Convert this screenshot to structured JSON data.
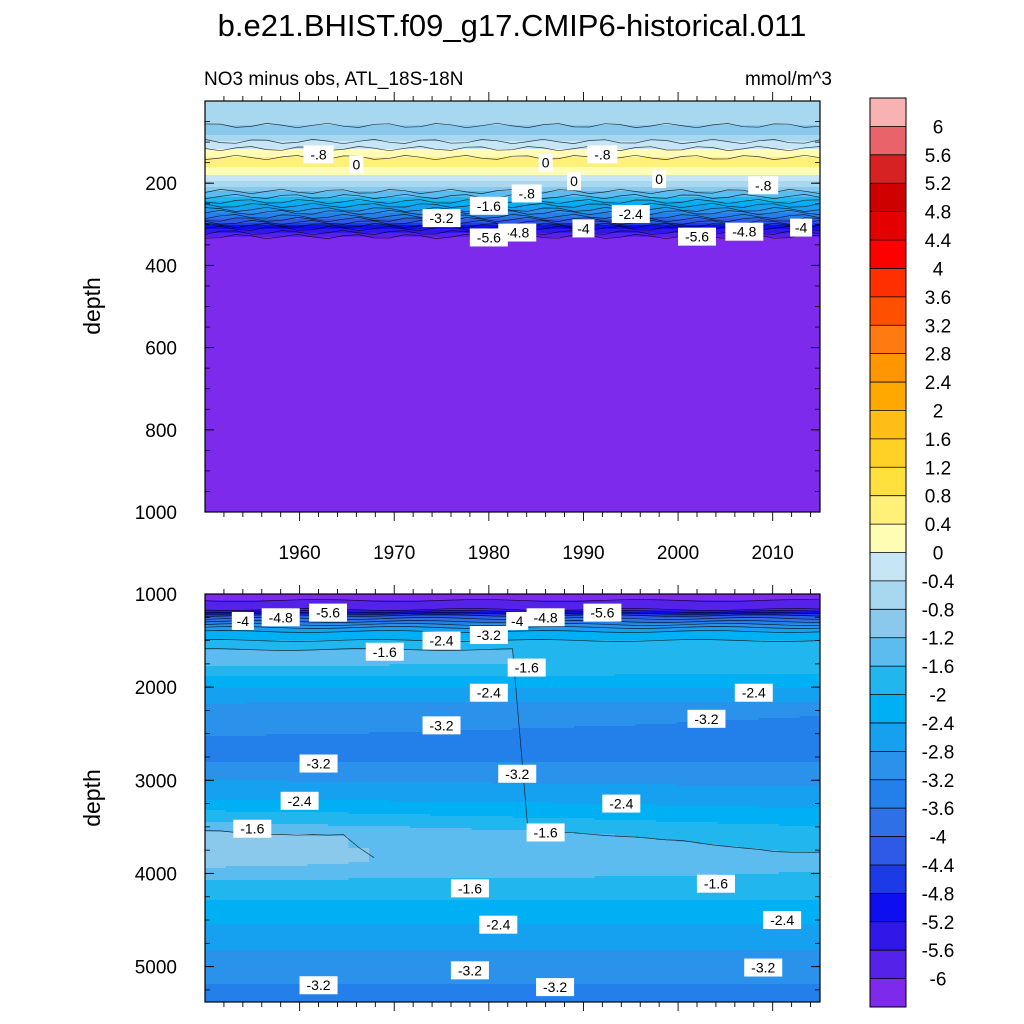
{
  "chart_data": {
    "type": "contour",
    "title": "b.e21.BHIST.f09_g17.CMIP6-historical.011",
    "subtitle_left": "NO3 minus obs, ATL_18S-18N",
    "subtitle_right": "mmol/m^3",
    "x_ticks": [
      "1960",
      "1970",
      "1980",
      "1990",
      "2000",
      "2010"
    ],
    "x_values": [
      1960,
      1970,
      1980,
      1990,
      2000,
      2010
    ],
    "xlim": [
      1950,
      2015
    ],
    "panels": [
      {
        "name": "upper",
        "ylabel": "depth",
        "ylim": [
          0,
          1000
        ],
        "yticks": [
          "200",
          "400",
          "600",
          "800",
          "1000"
        ],
        "ytick_values": [
          200,
          400,
          600,
          800,
          1000
        ],
        "profile": [
          {
            "depth": 0,
            "value": -0.5
          },
          {
            "depth": 40,
            "value": -0.7
          },
          {
            "depth": 80,
            "value": -0.9
          },
          {
            "depth": 115,
            "value": 0.0
          },
          {
            "depth": 150,
            "value": 0.6
          },
          {
            "depth": 180,
            "value": 0.0
          },
          {
            "depth": 215,
            "value": -1.0
          },
          {
            "depth": 250,
            "value": -2.2
          },
          {
            "depth": 285,
            "value": -3.8
          },
          {
            "depth": 315,
            "value": -5.4
          },
          {
            "depth": 335,
            "value": -6.2
          },
          {
            "depth": 1000,
            "value": -6.2
          }
        ],
        "contour_labels": [
          {
            "year": 1962,
            "depth": 130,
            "text": "-.8"
          },
          {
            "year": 1966,
            "depth": 155,
            "text": "0"
          },
          {
            "year": 1986,
            "depth": 150,
            "text": "0"
          },
          {
            "year": 1992,
            "depth": 130,
            "text": "-.8"
          },
          {
            "year": 1989,
            "depth": 195,
            "text": "0"
          },
          {
            "year": 1998,
            "depth": 190,
            "text": "0"
          },
          {
            "year": 1984,
            "depth": 225,
            "text": "-.8"
          },
          {
            "year": 2009,
            "depth": 205,
            "text": "-.8"
          },
          {
            "year": 1980,
            "depth": 255,
            "text": "-1.6"
          },
          {
            "year": 1995,
            "depth": 275,
            "text": "-2.4"
          },
          {
            "year": 1975,
            "depth": 285,
            "text": "-3.2"
          },
          {
            "year": 1990,
            "depth": 310,
            "text": "-4"
          },
          {
            "year": 2013,
            "depth": 308,
            "text": "-4"
          },
          {
            "year": 1983,
            "depth": 320,
            "text": "-4.8"
          },
          {
            "year": 2007,
            "depth": 318,
            "text": "-4.8"
          },
          {
            "year": 1980,
            "depth": 332,
            "text": "-5.6"
          },
          {
            "year": 2002,
            "depth": 330,
            "text": "-5.6"
          }
        ]
      },
      {
        "name": "lower",
        "ylabel": "depth",
        "ylim": [
          1000,
          5380
        ],
        "yticks": [
          "1000",
          "2000",
          "3000",
          "4000",
          "5000"
        ],
        "ytick_values": [
          1000,
          2000,
          3000,
          4000,
          5000
        ],
        "profile_start": [
          {
            "depth": 1000,
            "value": -6.2
          },
          {
            "depth": 1150,
            "value": -5.8
          },
          {
            "depth": 1260,
            "value": -4.0
          },
          {
            "depth": 1400,
            "value": -2.4
          },
          {
            "depth": 1600,
            "value": -1.6
          },
          {
            "depth": 1750,
            "value": -1.5
          },
          {
            "depth": 2000,
            "value": -2.4
          },
          {
            "depth": 2300,
            "value": -3.1
          },
          {
            "depth": 2750,
            "value": -3.3
          },
          {
            "depth": 3200,
            "value": -2.4
          },
          {
            "depth": 3450,
            "value": -1.6
          },
          {
            "depth": 3600,
            "value": -1.0
          },
          {
            "depth": 3900,
            "value": -1.1
          },
          {
            "depth": 4100,
            "value": -1.7
          },
          {
            "depth": 4400,
            "value": -2.2
          },
          {
            "depth": 4700,
            "value": -2.6
          },
          {
            "depth": 5000,
            "value": -3.1
          },
          {
            "depth": 5380,
            "value": -3.3
          }
        ],
        "profile_end": [
          {
            "depth": 1000,
            "value": -6.2
          },
          {
            "depth": 1150,
            "value": -5.8
          },
          {
            "depth": 1260,
            "value": -4.0
          },
          {
            "depth": 1400,
            "value": -2.4
          },
          {
            "depth": 1600,
            "value": -1.6
          },
          {
            "depth": 1750,
            "value": -1.7
          },
          {
            "depth": 2000,
            "value": -2.4
          },
          {
            "depth": 2300,
            "value": -3.2
          },
          {
            "depth": 2750,
            "value": -3.3
          },
          {
            "depth": 3200,
            "value": -2.6
          },
          {
            "depth": 3500,
            "value": -2.0
          },
          {
            "depth": 3850,
            "value": -1.5
          },
          {
            "depth": 4100,
            "value": -1.7
          },
          {
            "depth": 4400,
            "value": -2.2
          },
          {
            "depth": 4700,
            "value": -2.6
          },
          {
            "depth": 5000,
            "value": -3.1
          },
          {
            "depth": 5380,
            "value": -3.3
          }
        ],
        "contour_labels": [
          {
            "year": 1954,
            "depth": 1290,
            "text": "-4"
          },
          {
            "year": 1958,
            "depth": 1250,
            "text": "-4.8"
          },
          {
            "year": 1963,
            "depth": 1200,
            "text": "-5.6"
          },
          {
            "year": 1983,
            "depth": 1290,
            "text": "-4"
          },
          {
            "year": 1986,
            "depth": 1250,
            "text": "-4.8"
          },
          {
            "year": 1992,
            "depth": 1200,
            "text": "-5.6"
          },
          {
            "year": 1969,
            "depth": 1620,
            "text": "-1.6"
          },
          {
            "year": 1975,
            "depth": 1500,
            "text": "-2.4"
          },
          {
            "year": 1980,
            "depth": 1440,
            "text": "-3.2"
          },
          {
            "year": 1984,
            "depth": 1790,
            "text": "-1.6"
          },
          {
            "year": 1980,
            "depth": 2060,
            "text": "-2.4"
          },
          {
            "year": 2008,
            "depth": 2060,
            "text": "-2.4"
          },
          {
            "year": 1975,
            "depth": 2410,
            "text": "-3.2"
          },
          {
            "year": 2003,
            "depth": 2340,
            "text": "-3.2"
          },
          {
            "year": 1962,
            "depth": 2820,
            "text": "-3.2"
          },
          {
            "year": 1983,
            "depth": 2930,
            "text": "-3.2"
          },
          {
            "year": 1960,
            "depth": 3220,
            "text": "-2.4"
          },
          {
            "year": 1994,
            "depth": 3250,
            "text": "-2.4"
          },
          {
            "year": 1955,
            "depth": 3520,
            "text": "-1.6"
          },
          {
            "year": 1986,
            "depth": 3560,
            "text": "-1.6"
          },
          {
            "year": 1978,
            "depth": 4160,
            "text": "-1.6"
          },
          {
            "year": 2004,
            "depth": 4110,
            "text": "-1.6"
          },
          {
            "year": 1981,
            "depth": 4550,
            "text": "-2.4"
          },
          {
            "year": 2011,
            "depth": 4500,
            "text": "-2.4"
          },
          {
            "year": 1978,
            "depth": 5040,
            "text": "-3.2"
          },
          {
            "year": 2009,
            "depth": 5010,
            "text": "-3.2"
          },
          {
            "year": 1962,
            "depth": 5200,
            "text": "-3.2"
          },
          {
            "year": 1987,
            "depth": 5220,
            "text": "-3.2"
          }
        ]
      }
    ],
    "colorbar": {
      "levels": [
        "6",
        "5.6",
        "5.2",
        "4.8",
        "4.4",
        "4",
        "3.6",
        "3.2",
        "2.8",
        "2.4",
        "2",
        "1.6",
        "1.2",
        "0.8",
        "0.4",
        "0",
        "-0.4",
        "-0.8",
        "-1.2",
        "-1.6",
        "-2",
        "-2.4",
        "-2.8",
        "-3.2",
        "-3.6",
        "-4",
        "-4.4",
        "-4.8",
        "-5.2",
        "-5.6",
        "-6"
      ],
      "level_values": [
        6,
        5.6,
        5.2,
        4.8,
        4.4,
        4,
        3.6,
        3.2,
        2.8,
        2.4,
        2,
        1.6,
        1.2,
        0.8,
        0.4,
        0,
        -0.4,
        -0.8,
        -1.2,
        -1.6,
        -2,
        -2.4,
        -2.8,
        -3.2,
        -3.6,
        -4,
        -4.4,
        -4.8,
        -5.2,
        -5.6,
        -6
      ],
      "colors": [
        "#f9b2b2",
        "#e8636a",
        "#d62222",
        "#cf0000",
        "#e50000",
        "#ff0000",
        "#ff2f00",
        "#ff4f00",
        "#ff7a10",
        "#ff9600",
        "#ffa800",
        "#ffbe16",
        "#ffd124",
        "#ffe03c",
        "#fff07a",
        "#fffcb3",
        "#c6e6f5",
        "#a8d8f0",
        "#8ac8ec",
        "#5cbcf0",
        "#22b6ee",
        "#00b0f4",
        "#15a0f0",
        "#2b92ec",
        "#2380ea",
        "#3070e6",
        "#2f5ae8",
        "#1c3ae6",
        "#0d0ff0",
        "#3018e8",
        "#5522ea",
        "#7d2aec"
      ]
    }
  }
}
